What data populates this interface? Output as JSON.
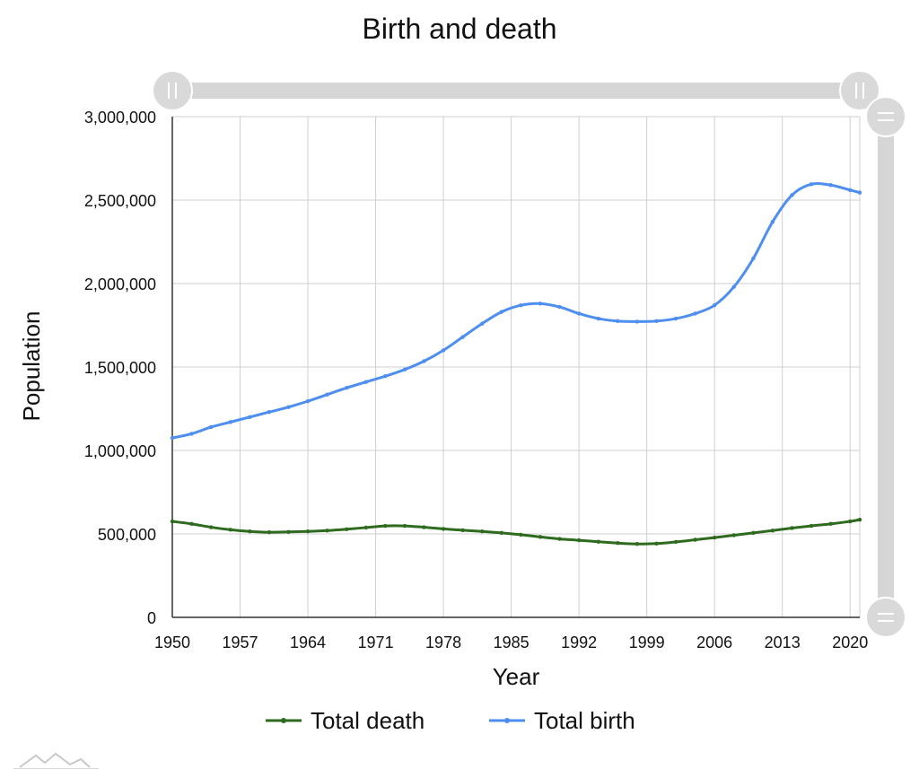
{
  "chart_data": {
    "type": "line",
    "title": "Birth and death",
    "xlabel": "Year",
    "ylabel": "Population",
    "xlim": [
      1950,
      2021
    ],
    "ylim": [
      0,
      3000000
    ],
    "x_ticks": [
      "1950",
      "1957",
      "1964",
      "1971",
      "1978",
      "1985",
      "1992",
      "1999",
      "2006",
      "2013",
      "2020"
    ],
    "y_ticks": [
      "0",
      "500,000",
      "1,000,000",
      "1,500,000",
      "2,000,000",
      "2,500,000",
      "3,000,000"
    ],
    "grid": true,
    "legend_position": "bottom",
    "series": [
      {
        "name": "Total death",
        "color": "#2e6b1f",
        "points": [
          [
            1950,
            575000
          ],
          [
            1952,
            560000
          ],
          [
            1954,
            540000
          ],
          [
            1956,
            525000
          ],
          [
            1958,
            515000
          ],
          [
            1960,
            510000
          ],
          [
            1962,
            512000
          ],
          [
            1964,
            515000
          ],
          [
            1966,
            520000
          ],
          [
            1968,
            528000
          ],
          [
            1970,
            538000
          ],
          [
            1972,
            548000
          ],
          [
            1974,
            548000
          ],
          [
            1976,
            540000
          ],
          [
            1978,
            530000
          ],
          [
            1980,
            522000
          ],
          [
            1982,
            515000
          ],
          [
            1984,
            506000
          ],
          [
            1986,
            495000
          ],
          [
            1988,
            482000
          ],
          [
            1990,
            470000
          ],
          [
            1992,
            462000
          ],
          [
            1994,
            453000
          ],
          [
            1996,
            445000
          ],
          [
            1998,
            440000
          ],
          [
            2000,
            442000
          ],
          [
            2002,
            452000
          ],
          [
            2004,
            465000
          ],
          [
            2006,
            478000
          ],
          [
            2008,
            492000
          ],
          [
            2010,
            506000
          ],
          [
            2012,
            520000
          ],
          [
            2014,
            535000
          ],
          [
            2016,
            548000
          ],
          [
            2018,
            560000
          ],
          [
            2020,
            575000
          ],
          [
            2021,
            585000
          ]
        ]
      },
      {
        "name": "Total birth",
        "color": "#4d8ef0",
        "points": [
          [
            1950,
            1075000
          ],
          [
            1952,
            1100000
          ],
          [
            1954,
            1140000
          ],
          [
            1956,
            1170000
          ],
          [
            1958,
            1200000
          ],
          [
            1960,
            1230000
          ],
          [
            1962,
            1260000
          ],
          [
            1964,
            1295000
          ],
          [
            1966,
            1335000
          ],
          [
            1968,
            1375000
          ],
          [
            1970,
            1410000
          ],
          [
            1972,
            1445000
          ],
          [
            1974,
            1485000
          ],
          [
            1976,
            1535000
          ],
          [
            1978,
            1600000
          ],
          [
            1980,
            1680000
          ],
          [
            1982,
            1760000
          ],
          [
            1984,
            1830000
          ],
          [
            1986,
            1870000
          ],
          [
            1988,
            1880000
          ],
          [
            1990,
            1860000
          ],
          [
            1992,
            1820000
          ],
          [
            1994,
            1790000
          ],
          [
            1996,
            1775000
          ],
          [
            1998,
            1772000
          ],
          [
            2000,
            1775000
          ],
          [
            2002,
            1790000
          ],
          [
            2004,
            1820000
          ],
          [
            2006,
            1870000
          ],
          [
            2008,
            1980000
          ],
          [
            2010,
            2150000
          ],
          [
            2012,
            2370000
          ],
          [
            2014,
            2530000
          ],
          [
            2016,
            2595000
          ],
          [
            2018,
            2590000
          ],
          [
            2020,
            2560000
          ],
          [
            2021,
            2545000
          ]
        ]
      }
    ]
  }
}
